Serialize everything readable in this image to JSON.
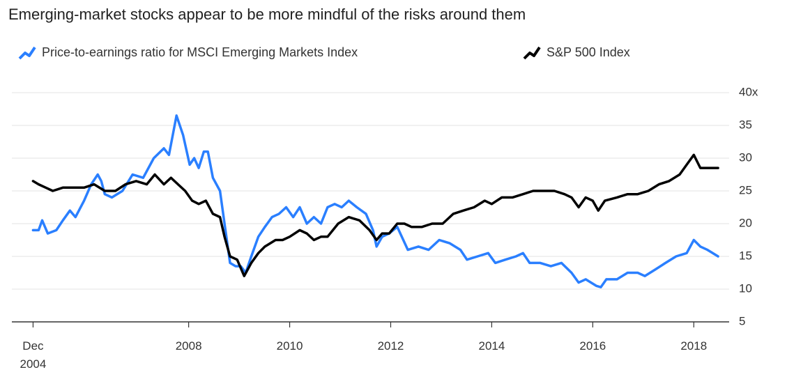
{
  "chart_data": {
    "type": "line",
    "title": "Emerging-market stocks appear to be more mindful of the risks around them",
    "xlim": [
      2004.5,
      2018.7
    ],
    "xticks": [
      {
        "value": 2004.92,
        "label": "Dec 2004"
      },
      2008,
      2010,
      2012,
      2014,
      2016,
      2018
    ],
    "ylim": [
      5,
      40
    ],
    "yticks": [
      5,
      10,
      15,
      20,
      25,
      30,
      35,
      {
        "value": 40,
        "label": "40x"
      }
    ],
    "grid": true,
    "series": [
      {
        "name": "Price-to-earnings ratio for MSCI Emerging Markets Index",
        "color": "#2a7fff",
        "x": [
          2004.92,
          2005.03,
          2005.1,
          2005.21,
          2005.38,
          2005.51,
          2005.65,
          2005.76,
          2005.93,
          2006.07,
          2006.2,
          2006.27,
          2006.34,
          2006.48,
          2006.69,
          2006.89,
          2007.1,
          2007.31,
          2007.51,
          2007.61,
          2007.76,
          2007.89,
          2008.02,
          2008.11,
          2008.2,
          2008.3,
          2008.38,
          2008.48,
          2008.62,
          2008.71,
          2008.82,
          2008.93,
          2009.03,
          2009.13,
          2009.24,
          2009.38,
          2009.51,
          2009.65,
          2009.79,
          2009.93,
          2010.07,
          2010.2,
          2010.34,
          2010.48,
          2010.62,
          2010.75,
          2010.89,
          2011.03,
          2011.17,
          2011.33,
          2011.51,
          2011.65,
          2011.72,
          2011.83,
          2011.97,
          2012.13,
          2012.34,
          2012.55,
          2012.75,
          2012.96,
          2013.17,
          2013.38,
          2013.51,
          2013.72,
          2013.93,
          2014.07,
          2014.27,
          2014.48,
          2014.62,
          2014.75,
          2014.96,
          2015.17,
          2015.38,
          2015.58,
          2015.72,
          2015.86,
          2016.07,
          2016.16,
          2016.27,
          2016.48,
          2016.69,
          2016.89,
          2017.03,
          2017.24,
          2017.44,
          2017.65,
          2017.86,
          2018.0,
          2018.13,
          2018.27,
          2018.48
        ],
        "values": [
          19,
          19,
          20.5,
          18.5,
          19,
          20.5,
          22,
          21,
          23.5,
          26,
          27.5,
          26.5,
          24.5,
          24,
          25,
          27.5,
          27,
          30,
          31.5,
          30.5,
          36.5,
          33.5,
          29,
          30,
          28.5,
          31,
          31,
          27,
          25,
          20,
          14,
          13.5,
          13.5,
          12.5,
          15,
          18,
          19.5,
          21,
          21.5,
          22.5,
          21,
          22.5,
          20,
          21,
          20,
          22.5,
          23,
          22.5,
          23.5,
          22.5,
          21.5,
          19,
          16.5,
          18,
          18.5,
          19.5,
          16,
          16.5,
          16,
          17.5,
          17,
          16,
          14.5,
          15,
          15.5,
          14,
          14.5,
          15,
          15.5,
          14,
          14,
          13.5,
          14,
          12.5,
          11,
          11.5,
          10.5,
          10.3,
          11.5,
          11.5,
          12.5,
          12.5,
          12,
          13,
          14,
          15,
          15.5,
          17.5,
          16.5,
          16,
          15
        ]
      },
      {
        "name": "S&P 500 Index",
        "color": "#000000",
        "x": [
          2004.92,
          2005.03,
          2005.17,
          2005.31,
          2005.51,
          2005.72,
          2005.93,
          2006.13,
          2006.34,
          2006.55,
          2006.75,
          2006.96,
          2007.17,
          2007.33,
          2007.51,
          2007.65,
          2007.79,
          2007.93,
          2008.07,
          2008.2,
          2008.34,
          2008.48,
          2008.62,
          2008.71,
          2008.82,
          2008.96,
          2009.1,
          2009.24,
          2009.38,
          2009.51,
          2009.72,
          2009.86,
          2010.0,
          2010.2,
          2010.34,
          2010.48,
          2010.62,
          2010.75,
          2010.96,
          2011.17,
          2011.38,
          2011.58,
          2011.72,
          2011.83,
          2011.97,
          2012.13,
          2012.27,
          2012.41,
          2012.62,
          2012.82,
          2013.03,
          2013.24,
          2013.44,
          2013.65,
          2013.86,
          2014.0,
          2014.2,
          2014.41,
          2014.62,
          2014.82,
          2015.03,
          2015.24,
          2015.44,
          2015.58,
          2015.72,
          2015.86,
          2016.0,
          2016.11,
          2016.24,
          2016.48,
          2016.69,
          2016.89,
          2017.1,
          2017.31,
          2017.51,
          2017.72,
          2017.86,
          2018.0,
          2018.13,
          2018.27,
          2018.48
        ],
        "values": [
          26.5,
          26,
          25.5,
          25,
          25.5,
          25.5,
          25.5,
          26,
          25,
          25,
          26,
          26.5,
          26,
          27.5,
          26,
          27,
          26,
          25,
          23.5,
          23,
          23.5,
          21.5,
          21,
          18,
          15,
          14.5,
          12,
          14,
          15.5,
          16.5,
          17.5,
          17.5,
          18,
          19,
          18.5,
          17.5,
          18,
          18,
          20,
          21,
          20.5,
          19,
          17.5,
          18.5,
          18.5,
          20,
          20,
          19.5,
          19.5,
          20,
          20,
          21.5,
          22,
          22.5,
          23.5,
          23,
          24,
          24,
          24.5,
          25,
          25,
          25,
          24.5,
          24,
          22.5,
          24,
          23.5,
          22,
          23.5,
          24,
          24.5,
          24.5,
          25,
          26,
          26.5,
          27.5,
          29,
          30.5,
          28.5,
          28.5,
          28.5
        ]
      }
    ]
  }
}
